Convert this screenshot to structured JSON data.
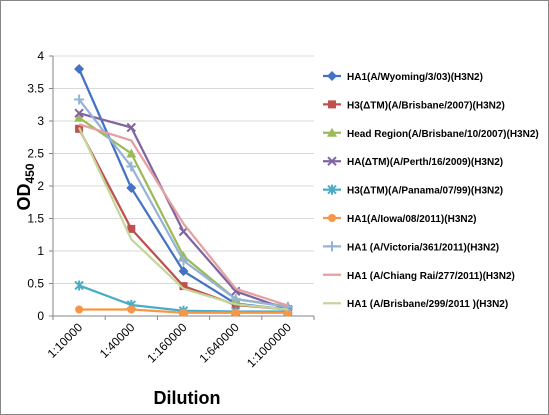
{
  "chart_data": {
    "type": "line",
    "title": "",
    "xlabel": "Dilution",
    "ylabel": "OD",
    "ylabel_sub": "450",
    "categories": [
      "1:10000",
      "1:40000",
      "1:160000",
      "1:640000",
      "1:1000000"
    ],
    "ylim": [
      0,
      4
    ],
    "yticks": [
      "0",
      "0.5",
      "1",
      "1.5",
      "2",
      "2.5",
      "3",
      "3.5",
      "4"
    ],
    "grid": "horizontal",
    "legend": "right",
    "series": [
      {
        "name": "HA1(A/Wyoming/3/03)(H3N2)",
        "color": "#4472c4",
        "marker": "diamond",
        "values": [
          3.8,
          1.97,
          0.69,
          0.19,
          0.1
        ]
      },
      {
        "name": "H3(ΔTM)(A/Brisbane/2007)(H3N2)",
        "color": "#c0504d",
        "marker": "square",
        "values": [
          2.88,
          1.34,
          0.46,
          0.17,
          0.1
        ]
      },
      {
        "name": "Head Region(A/Brisbane/10/2007)(H3N2)",
        "color": "#9bbb59",
        "marker": "triangle",
        "values": [
          3.05,
          2.5,
          0.92,
          0.26,
          0.15
        ]
      },
      {
        "name": "HA(ΔTM)(A/Perth/16/2009)(H3N2)",
        "color": "#8064a2",
        "marker": "x",
        "values": [
          3.12,
          2.9,
          1.3,
          0.38,
          0.1
        ]
      },
      {
        "name": "H3(ΔTM)(A/Panama/07/99)(H3N2)",
        "color": "#4bacc6",
        "marker": "star",
        "values": [
          0.47,
          0.17,
          0.08,
          0.07,
          0.07
        ]
      },
      {
        "name": "HA1(A/Iowa/08/2011)(H3N2)",
        "color": "#f79646",
        "marker": "circle",
        "values": [
          0.1,
          0.1,
          0.05,
          0.05,
          0.05
        ]
      },
      {
        "name": "HA1 (A/Victoria/361/2011)(H3N2)",
        "color": "#95b3d7",
        "marker": "plus",
        "values": [
          3.33,
          2.3,
          0.85,
          0.26,
          0.14
        ]
      },
      {
        "name": "HA1 (A/Chiang Rai/277/2011)(H3N2)",
        "color": "#e6a0a0",
        "marker": "line",
        "values": [
          2.95,
          2.7,
          1.42,
          0.42,
          0.16
        ]
      },
      {
        "name": "HA1 (A/Brisbane/299/2011 )(H3N2)",
        "color": "#c3d69b",
        "marker": "line",
        "values": [
          2.9,
          1.18,
          0.42,
          0.18,
          0.1
        ]
      }
    ]
  }
}
